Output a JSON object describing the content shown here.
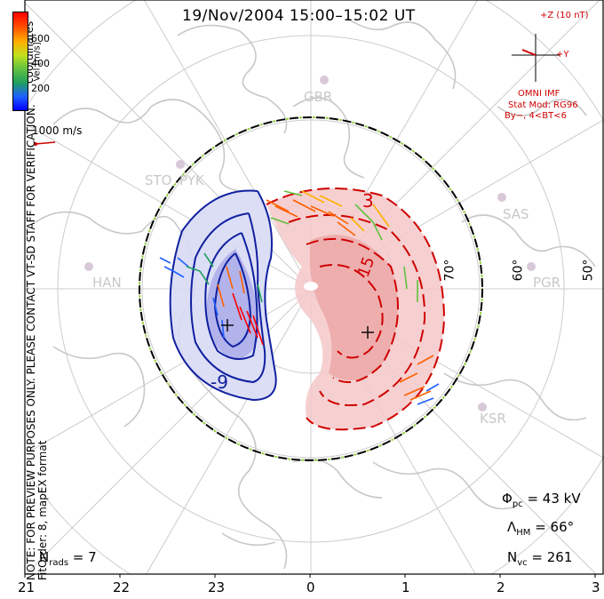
{
  "title": "19/Nov/2004  15:00–15:02 UT",
  "disclaimer_line1": "NOTE: FOR PREVIEW PURPOSES ONLY. PLEASE CONTACT VT-SD STAFF FOR VERIFICATION.",
  "disclaimer_line2": "FitOrder: 8, mapEX format",
  "coord_label": "MLT coordinates",
  "colorbar": {
    "label": "Vel [m/s]",
    "ticks": [
      "600",
      "400",
      "200"
    ]
  },
  "scale_label": "1000 m/s",
  "imf": {
    "z_label": "+Z (10 nT)",
    "y_label": "+Y",
    "source": "OMNI IMF",
    "stat_mod": "Stat Mod: RG96",
    "condition": "By−, 4<BT<6"
  },
  "stations": [
    "GBR",
    "STO",
    "PYK",
    "HAN",
    "SAS",
    "PGR",
    "KSR"
  ],
  "latitude_labels": [
    "70°",
    "60°",
    "50°"
  ],
  "contour_labels": [
    "3",
    "-9",
    "15"
  ],
  "stats": {
    "phi_pc": "43 kV",
    "lambda_hm": "66°",
    "n_vc": "261",
    "n_rads": "7"
  },
  "mlt_hours": [
    "21",
    "22",
    "23",
    "0",
    "1",
    "2",
    "3"
  ],
  "colors": {
    "positive_potential": "#d00000",
    "negative_potential": "#1020a0",
    "coastline": "#c8c8c8",
    "grid": "#cccccc"
  }
}
